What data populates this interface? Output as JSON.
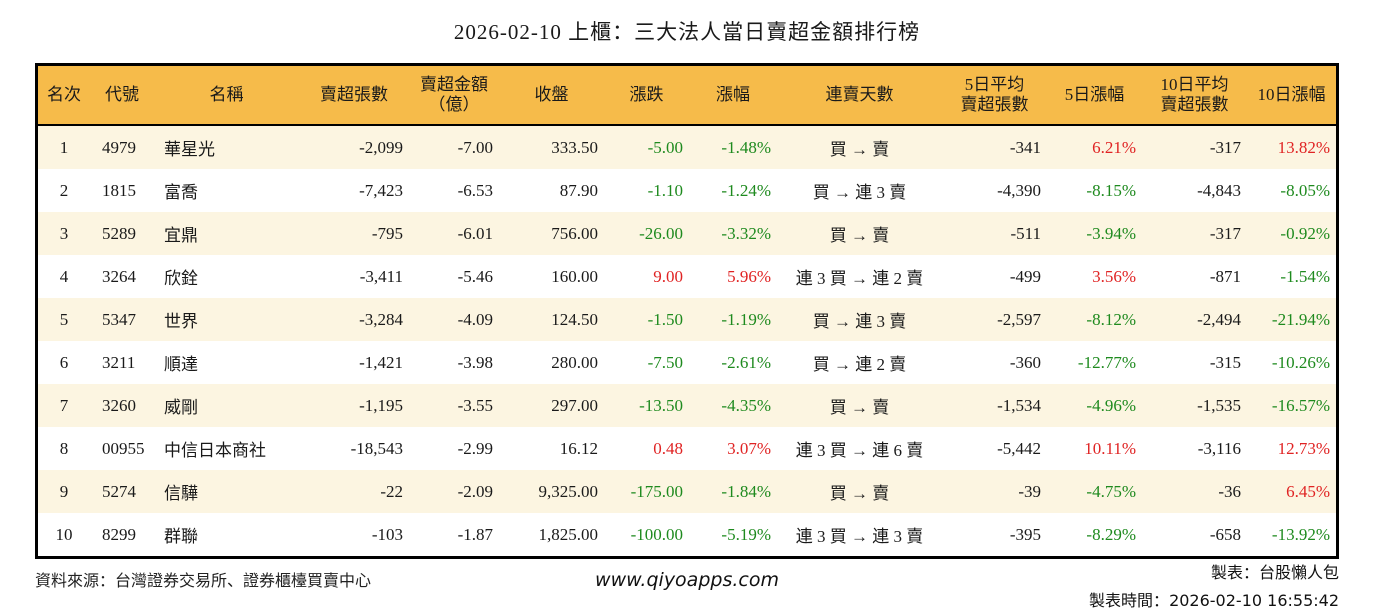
{
  "title": "2026-02-10 上櫃：三大法人當日賣超金額排行榜",
  "colors": {
    "header_bg": "#F6BB4A",
    "row_alt_bg": "#FCF5E1",
    "row_bg": "#FFFFFF",
    "up_red": "#E02323",
    "down_green": "#1E8A1E",
    "border": "#000000"
  },
  "chart_data": {
    "type": "table",
    "title": "2026-02-10 上櫃：三大法人當日賣超金額排行榜",
    "columns": [
      {
        "key": "rank",
        "label": "名次",
        "align": "c"
      },
      {
        "key": "code",
        "label": "代號",
        "align": "l"
      },
      {
        "key": "name",
        "label": "名稱",
        "align": "l"
      },
      {
        "key": "lots",
        "label": "賣超張數",
        "align": "r"
      },
      {
        "key": "amount",
        "label": "賣超金額\n（億）",
        "align": "r"
      },
      {
        "key": "close",
        "label": "收盤",
        "align": "r"
      },
      {
        "key": "change",
        "label": "漲跌",
        "align": "r"
      },
      {
        "key": "pct",
        "label": "漲幅",
        "align": "r"
      },
      {
        "key": "streak",
        "label": "連賣天數",
        "align": "c"
      },
      {
        "key": "avg5",
        "label": "5日平均\n賣超張數",
        "align": "r"
      },
      {
        "key": "pct5",
        "label": "5日漲幅",
        "align": "r"
      },
      {
        "key": "avg10",
        "label": "10日平均\n賣超張數",
        "align": "r"
      },
      {
        "key": "pct10",
        "label": "10日漲幅",
        "align": "r"
      }
    ],
    "rows": [
      {
        "rank": "1",
        "code": "4979",
        "name": "華星光",
        "lots": "-2,099",
        "amount": "-7.00",
        "close": "333.50",
        "change": "-5.00",
        "pct": "-1.48%",
        "streak": "買 → 賣",
        "avg5": "-341",
        "pct5": "6.21%",
        "avg10": "-317",
        "pct10": "13.82%",
        "dirs": {
          "change": "down",
          "pct": "down",
          "pct5": "up",
          "pct10": "up"
        }
      },
      {
        "rank": "2",
        "code": "1815",
        "name": "富喬",
        "lots": "-7,423",
        "amount": "-6.53",
        "close": "87.90",
        "change": "-1.10",
        "pct": "-1.24%",
        "streak": "買 → 連 3 賣",
        "avg5": "-4,390",
        "pct5": "-8.15%",
        "avg10": "-4,843",
        "pct10": "-8.05%",
        "dirs": {
          "change": "down",
          "pct": "down",
          "pct5": "down",
          "pct10": "down"
        }
      },
      {
        "rank": "3",
        "code": "5289",
        "name": "宜鼎",
        "lots": "-795",
        "amount": "-6.01",
        "close": "756.00",
        "change": "-26.00",
        "pct": "-3.32%",
        "streak": "買 → 賣",
        "avg5": "-511",
        "pct5": "-3.94%",
        "avg10": "-317",
        "pct10": "-0.92%",
        "dirs": {
          "change": "down",
          "pct": "down",
          "pct5": "down",
          "pct10": "down"
        }
      },
      {
        "rank": "4",
        "code": "3264",
        "name": "欣銓",
        "lots": "-3,411",
        "amount": "-5.46",
        "close": "160.00",
        "change": "9.00",
        "pct": "5.96%",
        "streak": "連 3 買 → 連 2 賣",
        "avg5": "-499",
        "pct5": "3.56%",
        "avg10": "-871",
        "pct10": "-1.54%",
        "dirs": {
          "change": "up",
          "pct": "up",
          "pct5": "up",
          "pct10": "down"
        }
      },
      {
        "rank": "5",
        "code": "5347",
        "name": "世界",
        "lots": "-3,284",
        "amount": "-4.09",
        "close": "124.50",
        "change": "-1.50",
        "pct": "-1.19%",
        "streak": "買 → 連 3 賣",
        "avg5": "-2,597",
        "pct5": "-8.12%",
        "avg10": "-2,494",
        "pct10": "-21.94%",
        "dirs": {
          "change": "down",
          "pct": "down",
          "pct5": "down",
          "pct10": "down"
        }
      },
      {
        "rank": "6",
        "code": "3211",
        "name": "順達",
        "lots": "-1,421",
        "amount": "-3.98",
        "close": "280.00",
        "change": "-7.50",
        "pct": "-2.61%",
        "streak": "買 → 連 2 賣",
        "avg5": "-360",
        "pct5": "-12.77%",
        "avg10": "-315",
        "pct10": "-10.26%",
        "dirs": {
          "change": "down",
          "pct": "down",
          "pct5": "down",
          "pct10": "down"
        }
      },
      {
        "rank": "7",
        "code": "3260",
        "name": "威剛",
        "lots": "-1,195",
        "amount": "-3.55",
        "close": "297.00",
        "change": "-13.50",
        "pct": "-4.35%",
        "streak": "買 → 賣",
        "avg5": "-1,534",
        "pct5": "-4.96%",
        "avg10": "-1,535",
        "pct10": "-16.57%",
        "dirs": {
          "change": "down",
          "pct": "down",
          "pct5": "down",
          "pct10": "down"
        }
      },
      {
        "rank": "8",
        "code": "00955",
        "name": "中信日本商社",
        "lots": "-18,543",
        "amount": "-2.99",
        "close": "16.12",
        "change": "0.48",
        "pct": "3.07%",
        "streak": "連 3 買 → 連 6 賣",
        "avg5": "-5,442",
        "pct5": "10.11%",
        "avg10": "-3,116",
        "pct10": "12.73%",
        "dirs": {
          "change": "up",
          "pct": "up",
          "pct5": "up",
          "pct10": "up"
        }
      },
      {
        "rank": "9",
        "code": "5274",
        "name": "信驊",
        "lots": "-22",
        "amount": "-2.09",
        "close": "9,325.00",
        "change": "-175.00",
        "pct": "-1.84%",
        "streak": "買 → 賣",
        "avg5": "-39",
        "pct5": "-4.75%",
        "avg10": "-36",
        "pct10": "6.45%",
        "dirs": {
          "change": "down",
          "pct": "down",
          "pct5": "down",
          "pct10": "up"
        }
      },
      {
        "rank": "10",
        "code": "8299",
        "name": "群聯",
        "lots": "-103",
        "amount": "-1.87",
        "close": "1,825.00",
        "change": "-100.00",
        "pct": "-5.19%",
        "streak": "連 3 買 → 連 3 賣",
        "avg5": "-395",
        "pct5": "-8.29%",
        "avg10": "-658",
        "pct10": "-13.92%",
        "dirs": {
          "change": "down",
          "pct": "down",
          "pct5": "down",
          "pct10": "down"
        }
      }
    ]
  },
  "footer": {
    "source": "資料來源：台灣證券交易所、證券櫃檯買賣中心",
    "website": "www.qiyoapps.com",
    "maker": "製表：台股懶人包",
    "made_at_label": "製表時間：",
    "made_at_value": "2026-02-10 16:55:42"
  }
}
